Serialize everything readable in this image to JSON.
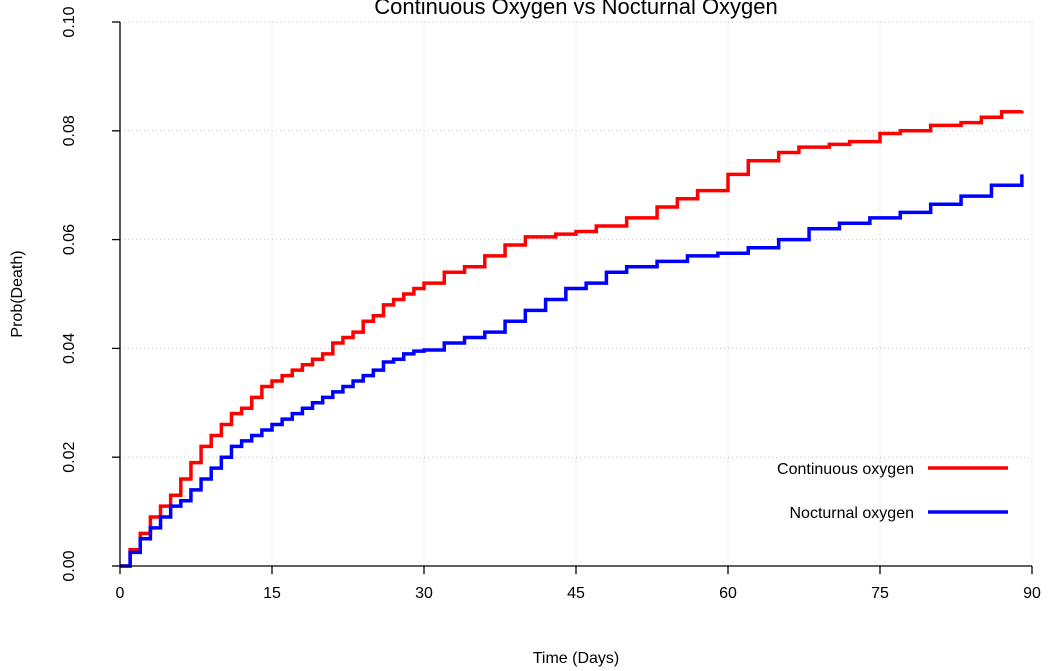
{
  "chart_data": {
    "type": "line",
    "title": "Continuous Oxygen vs Nocturnal Oxygen",
    "xlabel": "Time (Days)",
    "ylabel": "Prob(Death)",
    "xlim": [
      0,
      90
    ],
    "ylim": [
      0,
      0.1
    ],
    "x_ticks": [
      0,
      15,
      30,
      45,
      60,
      75,
      90
    ],
    "x_tick_labels": [
      "0",
      "15",
      "30",
      "45",
      "60",
      "75",
      "90"
    ],
    "y_ticks": [
      0,
      0.02,
      0.04,
      0.06,
      0.08,
      0.1
    ],
    "y_tick_labels": [
      "0.00",
      "0.02",
      "0.04",
      "0.06",
      "0.08",
      "0.10"
    ],
    "grid": true,
    "legend_position": "bottom-right",
    "series": [
      {
        "name": "Continuous oxygen",
        "color": "#ff0000",
        "x": [
          0,
          1,
          2,
          3,
          4,
          5,
          6,
          7,
          8,
          9,
          10,
          11,
          12,
          13,
          14,
          15,
          16,
          17,
          18,
          19,
          20,
          21,
          22,
          23,
          24,
          25,
          26,
          27,
          28,
          29,
          30,
          32,
          34,
          36,
          38,
          40,
          43,
          45,
          47,
          50,
          53,
          55,
          57,
          60,
          62,
          65,
          67,
          70,
          72,
          75,
          77,
          80,
          83,
          85,
          87,
          89
        ],
        "y": [
          0,
          0.003,
          0.006,
          0.009,
          0.011,
          0.013,
          0.016,
          0.019,
          0.022,
          0.024,
          0.026,
          0.028,
          0.029,
          0.031,
          0.033,
          0.034,
          0.035,
          0.036,
          0.037,
          0.038,
          0.039,
          0.041,
          0.042,
          0.043,
          0.045,
          0.046,
          0.048,
          0.049,
          0.05,
          0.051,
          0.052,
          0.054,
          0.055,
          0.057,
          0.059,
          0.0605,
          0.061,
          0.0615,
          0.0625,
          0.064,
          0.066,
          0.0675,
          0.069,
          0.072,
          0.0745,
          0.076,
          0.077,
          0.0775,
          0.078,
          0.0795,
          0.08,
          0.081,
          0.0815,
          0.0825,
          0.0835,
          0.0837
        ]
      },
      {
        "name": "Nocturnal oxygen",
        "color": "#0000ff",
        "x": [
          0,
          1,
          2,
          3,
          4,
          5,
          6,
          7,
          8,
          9,
          10,
          11,
          12,
          13,
          14,
          15,
          16,
          17,
          18,
          19,
          20,
          21,
          22,
          23,
          24,
          25,
          26,
          27,
          28,
          29,
          30,
          32,
          34,
          36,
          38,
          40,
          42,
          44,
          46,
          48,
          50,
          53,
          56,
          59,
          62,
          65,
          68,
          71,
          74,
          77,
          80,
          83,
          86,
          89
        ],
        "y": [
          0,
          0.0025,
          0.005,
          0.007,
          0.009,
          0.011,
          0.012,
          0.014,
          0.016,
          0.018,
          0.02,
          0.022,
          0.023,
          0.024,
          0.025,
          0.026,
          0.027,
          0.028,
          0.029,
          0.03,
          0.031,
          0.032,
          0.033,
          0.034,
          0.035,
          0.036,
          0.0375,
          0.038,
          0.039,
          0.0395,
          0.0397,
          0.041,
          0.042,
          0.043,
          0.045,
          0.047,
          0.049,
          0.051,
          0.052,
          0.054,
          0.055,
          0.056,
          0.057,
          0.0575,
          0.0585,
          0.06,
          0.062,
          0.063,
          0.064,
          0.065,
          0.0665,
          0.068,
          0.07,
          0.072
        ]
      }
    ]
  }
}
